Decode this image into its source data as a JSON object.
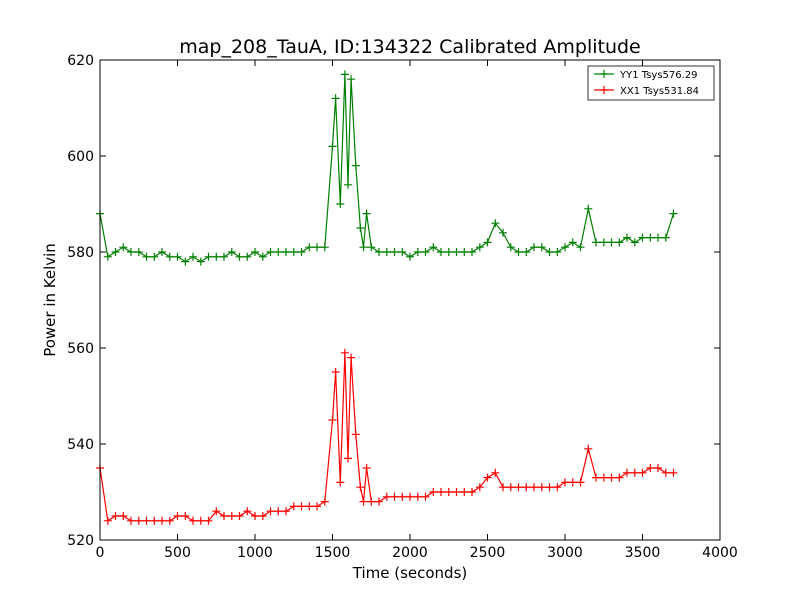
{
  "chart_data": {
    "type": "line",
    "title": "map_208_TauA, ID:134322 Calibrated Amplitude",
    "xlabel": "Time (seconds)",
    "ylabel": "Power in Kelvin",
    "xlim": [
      0,
      4000
    ],
    "ylim": [
      520,
      620
    ],
    "xticks": [
      "0",
      "500",
      "1000",
      "1500",
      "2000",
      "2500",
      "3000",
      "3500",
      "4000"
    ],
    "yticks": [
      "520",
      "540",
      "560",
      "580",
      "600",
      "620"
    ],
    "grid": false,
    "legend_position": "top-right",
    "marker": "+",
    "series": [
      {
        "name": "YY1 Tsys576.29",
        "color": "#008000",
        "x": [
          0,
          50,
          100,
          150,
          200,
          250,
          300,
          350,
          400,
          450,
          500,
          550,
          600,
          650,
          700,
          750,
          800,
          850,
          900,
          950,
          1000,
          1050,
          1100,
          1150,
          1200,
          1250,
          1300,
          1350,
          1400,
          1450,
          1500,
          1520,
          1550,
          1580,
          1600,
          1620,
          1650,
          1680,
          1700,
          1720,
          1750,
          1800,
          1850,
          1900,
          1950,
          2000,
          2050,
          2100,
          2150,
          2200,
          2250,
          2300,
          2350,
          2400,
          2450,
          2500,
          2550,
          2600,
          2650,
          2700,
          2750,
          2800,
          2850,
          2900,
          2950,
          3000,
          3050,
          3100,
          3150,
          3200,
          3250,
          3300,
          3350,
          3400,
          3450,
          3500,
          3550,
          3600,
          3650,
          3700
        ],
        "y": [
          588,
          579,
          580,
          581,
          580,
          580,
          579,
          579,
          580,
          579,
          579,
          578,
          579,
          578,
          579,
          579,
          579,
          580,
          579,
          579,
          580,
          579,
          580,
          580,
          580,
          580,
          580,
          581,
          581,
          581,
          602,
          612,
          590,
          617,
          594,
          616,
          598,
          585,
          581,
          588,
          581,
          580,
          580,
          580,
          580,
          579,
          580,
          580,
          581,
          580,
          580,
          580,
          580,
          580,
          581,
          582,
          586,
          584,
          581,
          580,
          580,
          581,
          581,
          580,
          580,
          581,
          582,
          581,
          589,
          582,
          582,
          582,
          582,
          583,
          582,
          583,
          583,
          583,
          583,
          588
        ]
      },
      {
        "name": "XX1 Tsys531.84",
        "color": "#ff0000",
        "x": [
          0,
          50,
          100,
          150,
          200,
          250,
          300,
          350,
          400,
          450,
          500,
          550,
          600,
          650,
          700,
          750,
          800,
          850,
          900,
          950,
          1000,
          1050,
          1100,
          1150,
          1200,
          1250,
          1300,
          1350,
          1400,
          1450,
          1500,
          1520,
          1550,
          1580,
          1600,
          1620,
          1650,
          1680,
          1700,
          1720,
          1750,
          1800,
          1850,
          1900,
          1950,
          2000,
          2050,
          2100,
          2150,
          2200,
          2250,
          2300,
          2350,
          2400,
          2450,
          2500,
          2550,
          2600,
          2650,
          2700,
          2750,
          2800,
          2850,
          2900,
          2950,
          3000,
          3050,
          3100,
          3150,
          3200,
          3250,
          3300,
          3350,
          3400,
          3450,
          3500,
          3550,
          3600,
          3650,
          3700
        ],
        "y": [
          535,
          524,
          525,
          525,
          524,
          524,
          524,
          524,
          524,
          524,
          525,
          525,
          524,
          524,
          524,
          526,
          525,
          525,
          525,
          526,
          525,
          525,
          526,
          526,
          526,
          527,
          527,
          527,
          527,
          528,
          545,
          555,
          532,
          559,
          537,
          558,
          542,
          531,
          528,
          535,
          528,
          528,
          529,
          529,
          529,
          529,
          529,
          529,
          530,
          530,
          530,
          530,
          530,
          530,
          531,
          533,
          534,
          531,
          531,
          531,
          531,
          531,
          531,
          531,
          531,
          532,
          532,
          532,
          539,
          533,
          533,
          533,
          533,
          534,
          534,
          534,
          535,
          535,
          534,
          534
        ]
      }
    ]
  }
}
